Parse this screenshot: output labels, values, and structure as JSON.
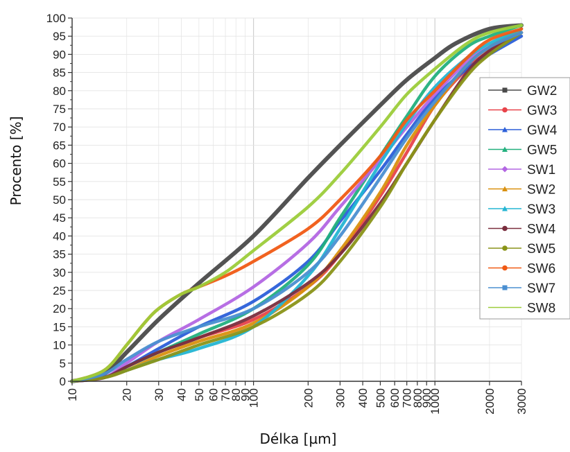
{
  "chart_data": {
    "type": "line",
    "xlabel": "Délka [µm]",
    "ylabel": "Procento [%]",
    "x_scale": "log",
    "xlim": [
      10,
      3000
    ],
    "ylim": [
      0,
      100
    ],
    "grid": true,
    "legend_position": "right",
    "x_ticks": [
      10,
      20,
      30,
      40,
      50,
      60,
      70,
      80,
      90,
      100,
      200,
      300,
      400,
      500,
      600,
      700,
      800,
      900,
      1000,
      2000,
      3000
    ],
    "x_tick_labels": [
      "10",
      "20",
      "30",
      "40",
      "50",
      "60",
      "70",
      "80",
      "90",
      "100",
      "200",
      "300",
      "400",
      "500",
      "600",
      "700",
      "800",
      "900",
      "1000",
      "2000",
      "3000"
    ],
    "y_ticks": [
      0,
      5,
      10,
      15,
      20,
      25,
      30,
      35,
      40,
      45,
      50,
      55,
      60,
      65,
      70,
      75,
      80,
      85,
      90,
      95,
      100
    ],
    "y_tick_labels": [
      "0",
      "5",
      "10",
      "15",
      "20",
      "25",
      "30",
      "35",
      "40",
      "45",
      "50",
      "55",
      "60",
      "65",
      "70",
      "75",
      "80",
      "85",
      "90",
      "95",
      "100"
    ],
    "series": [
      {
        "name": "GW2",
        "color": "#4a4a4a",
        "marker": "square",
        "x": [
          10,
          15,
          20,
          30,
          50,
          100,
          200,
          300,
          500,
          700,
          1000,
          1300,
          2000,
          3000
        ],
        "y": [
          0,
          2,
          8,
          17,
          27,
          40,
          56,
          65,
          76,
          83,
          89,
          93,
          97,
          98
        ]
      },
      {
        "name": "GW3",
        "color": "#e8434a",
        "marker": "circle",
        "x": [
          10,
          15,
          20,
          30,
          50,
          100,
          200,
          300,
          500,
          700,
          1000,
          1500,
          2000,
          3000
        ],
        "y": [
          0,
          1,
          4,
          8,
          12,
          17,
          26,
          35,
          51,
          63,
          76,
          86,
          91,
          97
        ]
      },
      {
        "name": "GW4",
        "color": "#2b5fd9",
        "marker": "triangle",
        "x": [
          10,
          15,
          20,
          30,
          50,
          100,
          200,
          300,
          500,
          700,
          1000,
          1500,
          2000,
          3000
        ],
        "y": [
          0,
          1,
          4,
          9,
          15,
          22,
          33,
          44,
          58,
          68,
          78,
          86,
          90,
          95
        ]
      },
      {
        "name": "GW5",
        "color": "#22b07e",
        "marker": "triangle-down",
        "x": [
          10,
          15,
          20,
          30,
          50,
          100,
          200,
          300,
          500,
          700,
          1000,
          1500,
          2000,
          3000
        ],
        "y": [
          0,
          1,
          4,
          8,
          13,
          20,
          32,
          45,
          62,
          73,
          84,
          92,
          95,
          98
        ]
      },
      {
        "name": "SW1",
        "color": "#b366e3",
        "marker": "diamond",
        "x": [
          10,
          15,
          20,
          30,
          50,
          100,
          200,
          300,
          500,
          700,
          1000,
          1500,
          2000,
          3000
        ],
        "y": [
          0,
          1,
          5,
          11,
          17,
          26,
          38,
          48,
          61,
          70,
          79,
          88,
          92,
          96
        ]
      },
      {
        "name": "SW2",
        "color": "#d9900f",
        "marker": "triangle-left",
        "x": [
          10,
          15,
          20,
          30,
          50,
          100,
          200,
          300,
          500,
          700,
          1000,
          1500,
          2000,
          3000
        ],
        "y": [
          0,
          1,
          3,
          7,
          11,
          16,
          26,
          36,
          52,
          65,
          76,
          87,
          92,
          97
        ]
      },
      {
        "name": "SW3",
        "color": "#23b5d3",
        "marker": "triangle-right",
        "x": [
          10,
          15,
          20,
          30,
          50,
          100,
          200,
          300,
          500,
          700,
          1000,
          1500,
          2000,
          3000
        ],
        "y": [
          0,
          1,
          3,
          6,
          9,
          15,
          29,
          42,
          60,
          71,
          81,
          89,
          93,
          97
        ]
      },
      {
        "name": "SW4",
        "color": "#7a2e3e",
        "marker": "hexagon",
        "x": [
          10,
          15,
          20,
          30,
          50,
          100,
          200,
          300,
          500,
          700,
          1000,
          1500,
          2000,
          3000
        ],
        "y": [
          0,
          1,
          4,
          8,
          12,
          18,
          27,
          35,
          49,
          60,
          72,
          85,
          91,
          96
        ]
      },
      {
        "name": "SW5",
        "color": "#8a9418",
        "marker": "star",
        "x": [
          10,
          15,
          20,
          30,
          50,
          100,
          200,
          300,
          500,
          700,
          1000,
          1500,
          2000,
          3000
        ],
        "y": [
          0,
          1,
          3,
          6,
          10,
          15,
          24,
          33,
          48,
          60,
          72,
          84,
          90,
          96
        ]
      },
      {
        "name": "SW6",
        "color": "#f05a14",
        "marker": "circle",
        "x": [
          10,
          15,
          20,
          25,
          30,
          40,
          50,
          70,
          100,
          200,
          300,
          500,
          700,
          1000,
          1500,
          2000,
          3000
        ],
        "y": [
          0,
          3,
          10,
          16,
          20,
          24,
          26,
          29,
          33,
          42,
          50,
          62,
          72,
          80,
          89,
          94,
          97
        ]
      },
      {
        "name": "SW7",
        "color": "#4a8fd1",
        "marker": "square",
        "x": [
          10,
          15,
          20,
          30,
          50,
          100,
          200,
          300,
          500,
          700,
          1000,
          1500,
          2000,
          3000
        ],
        "y": [
          0,
          2,
          6,
          11,
          15,
          20,
          30,
          40,
          56,
          67,
          77,
          87,
          92,
          96
        ]
      },
      {
        "name": "SW8",
        "color": "#9ccc3a",
        "marker": "line",
        "x": [
          10,
          15,
          20,
          25,
          30,
          40,
          50,
          70,
          100,
          200,
          300,
          500,
          700,
          1000,
          1500,
          2000,
          3000
        ],
        "y": [
          0,
          3,
          10,
          16,
          20,
          24,
          26,
          30,
          36,
          48,
          57,
          70,
          79,
          86,
          93,
          96,
          98
        ]
      }
    ]
  }
}
